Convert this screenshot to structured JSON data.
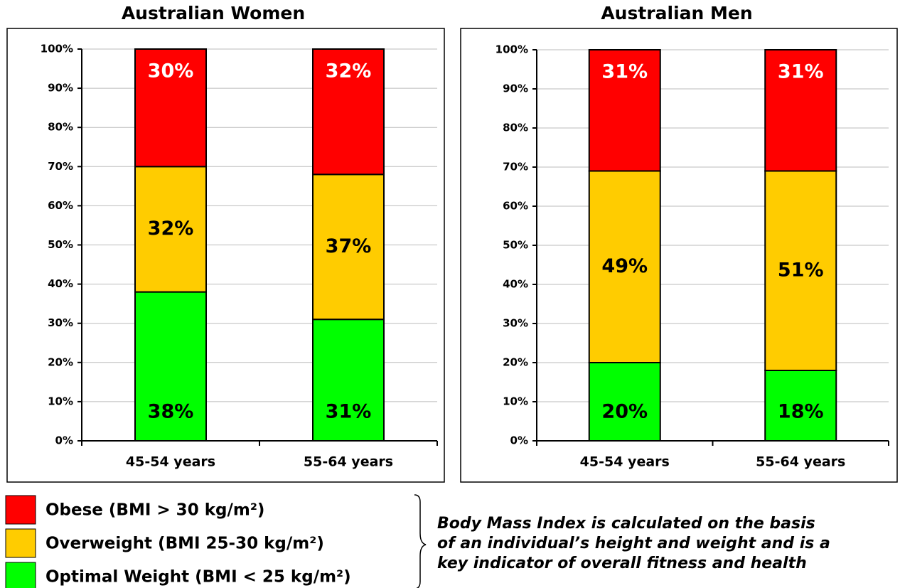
{
  "chart_data": [
    {
      "type": "bar",
      "stacked": true,
      "title": "Australian Women",
      "categories": [
        "45-54 years",
        "55-64 years"
      ],
      "series": [
        {
          "color": "#00ff00",
          "values": [
            38,
            31
          ],
          "value_labels": [
            "38%",
            "31%"
          ],
          "label_color": "#000000"
        },
        {
          "color": "#ffcc00",
          "values": [
            32,
            37
          ],
          "value_labels": [
            "32%",
            "37%"
          ],
          "label_color": "#000000"
        },
        {
          "color": "#ff0000",
          "values": [
            30,
            32
          ],
          "value_labels": [
            "30%",
            "32%"
          ],
          "label_color": "#ffffff"
        }
      ],
      "ylim": [
        0,
        100
      ],
      "yticks": [
        {
          "value": 0,
          "label": "0%"
        },
        {
          "value": 10,
          "label": "10%"
        },
        {
          "value": 20,
          "label": "20%"
        },
        {
          "value": 30,
          "label": "30%"
        },
        {
          "value": 40,
          "label": "40%"
        },
        {
          "value": 50,
          "label": "50%"
        },
        {
          "value": 60,
          "label": "60%"
        },
        {
          "value": 70,
          "label": "70%"
        },
        {
          "value": 80,
          "label": "80%"
        },
        {
          "value": 90,
          "label": "90%"
        },
        {
          "value": 100,
          "label": "100%"
        }
      ],
      "grid": true
    },
    {
      "type": "bar",
      "stacked": true,
      "title": "Australian Men",
      "categories": [
        "45-54 years",
        "55-64 years"
      ],
      "series": [
        {
          "color": "#00ff00",
          "values": [
            20,
            18
          ],
          "value_labels": [
            "20%",
            "18%"
          ],
          "label_color": "#000000"
        },
        {
          "color": "#ffcc00",
          "values": [
            49,
            51
          ],
          "value_labels": [
            "49%",
            "51%"
          ],
          "label_color": "#000000"
        },
        {
          "color": "#ff0000",
          "values": [
            31,
            31
          ],
          "value_labels": [
            "31%",
            "31%"
          ],
          "label_color": "#ffffff"
        }
      ],
      "ylim": [
        0,
        100
      ],
      "yticks": [
        {
          "value": 0,
          "label": "0%"
        },
        {
          "value": 10,
          "label": "10%"
        },
        {
          "value": 20,
          "label": "20%"
        },
        {
          "value": 30,
          "label": "30%"
        },
        {
          "value": 40,
          "label": "40%"
        },
        {
          "value": 50,
          "label": "50%"
        },
        {
          "value": 60,
          "label": "60%"
        },
        {
          "value": 70,
          "label": "70%"
        },
        {
          "value": 80,
          "label": "80%"
        },
        {
          "value": 90,
          "label": "90%"
        },
        {
          "value": 100,
          "label": "100%"
        }
      ],
      "grid": true
    }
  ],
  "legend": {
    "items": [
      {
        "name": "Obese (BMI > 30 kg/m²)",
        "color": "#ff0000"
      },
      {
        "name": "Overweight (BMI 25-30 kg/m²)",
        "color": "#ffcc00"
      },
      {
        "name": "Optimal Weight (BMI < 25 kg/m²)",
        "color": "#00ff00"
      }
    ]
  },
  "note": {
    "lines": [
      "Body Mass Index is calculated on the basis",
      "of an individual’s height and weight and is a",
      "key indicator of overall fitness and health"
    ]
  }
}
